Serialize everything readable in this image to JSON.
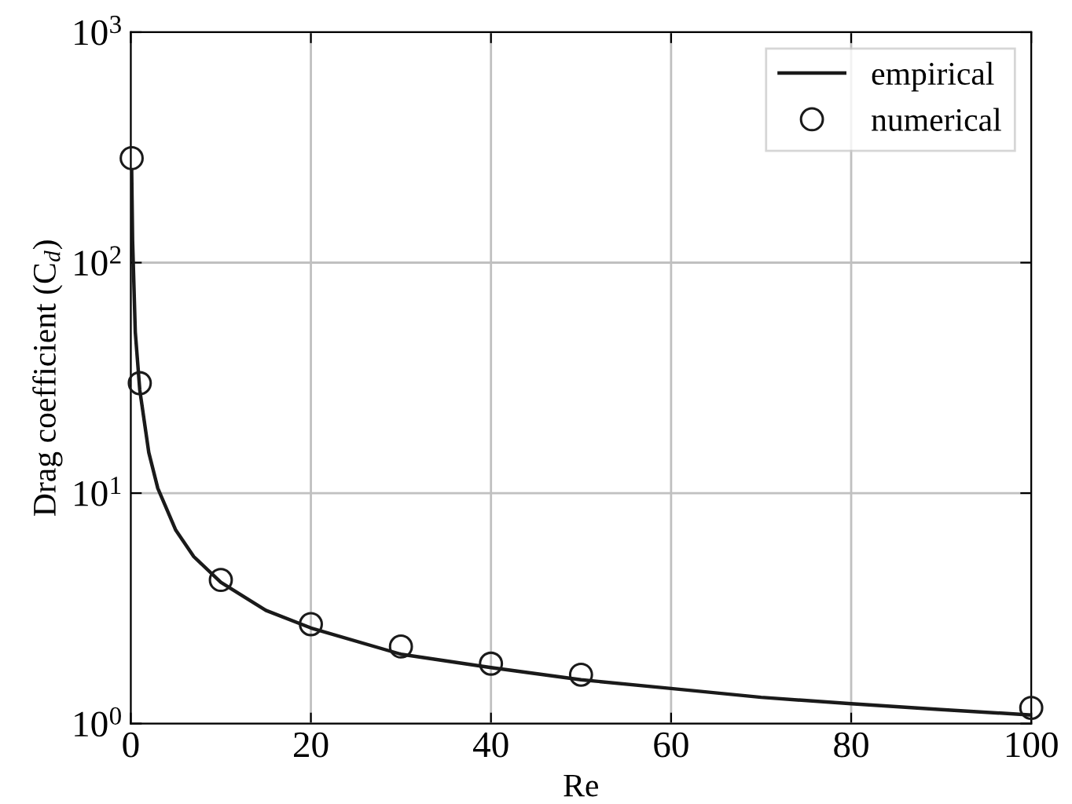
{
  "chart_data": {
    "type": "line",
    "xlabel": "Re",
    "ylabel": "Drag coefficient (C$_{d}$)",
    "series": [
      {
        "name": "empirical",
        "color": "#1a1a1a",
        "marker": "none",
        "line_style": "solid",
        "x": [
          0.1,
          0.2,
          0.5,
          1,
          2,
          3,
          5,
          7,
          10,
          15,
          20,
          30,
          40,
          50,
          60,
          70,
          80,
          90,
          100
        ],
        "values": [
          250,
          125,
          50,
          28,
          15,
          10.5,
          6.9,
          5.3,
          4.1,
          3.1,
          2.6,
          2.0,
          1.75,
          1.55,
          1.42,
          1.3,
          1.22,
          1.15,
          1.09
        ]
      },
      {
        "name": "numerical",
        "type": "scatter",
        "color": "#1a1a1a",
        "marker": "circle",
        "x": [
          0.1,
          1,
          10,
          20,
          30,
          40,
          50,
          100
        ],
        "values": [
          284,
          30,
          4.2,
          2.7,
          2.16,
          1.82,
          1.63,
          1.17
        ]
      }
    ],
    "xlim": [
      0,
      100
    ],
    "xticks": [
      0,
      20,
      40,
      60,
      80,
      100
    ],
    "log": "y",
    "ylim": [
      1,
      1000
    ],
    "yticks": [
      {
        "value": 1,
        "label": "10$^{0}$"
      },
      {
        "value": 10,
        "label": "10$^{1}$"
      },
      {
        "value": 100,
        "label": "10$^{2}$"
      },
      {
        "value": 1000,
        "label": "10$^{3}$"
      }
    ],
    "grid": true,
    "legend": "top right"
  }
}
